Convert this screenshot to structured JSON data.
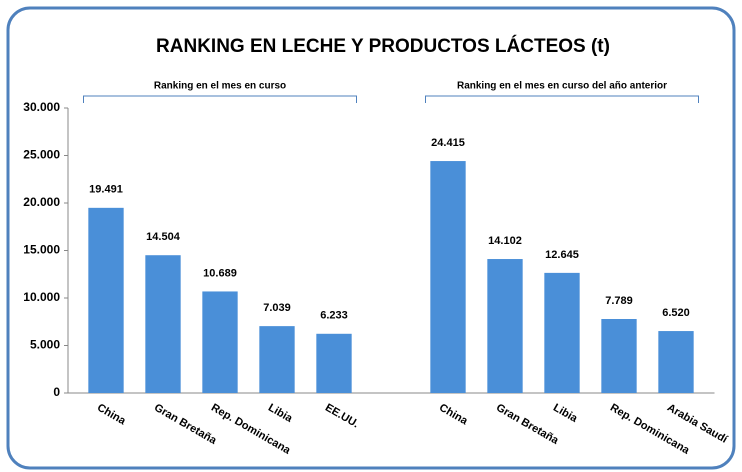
{
  "chart_data": {
    "type": "bar",
    "title": "RANKING EN LECHE Y PRODUCTOS LÁCTEOS (t)",
    "annotations": [
      "Ranking en el mes en curso",
      "Ranking en el mes en curso del año anterior"
    ],
    "categories": [
      "China",
      "Gran Bretaña",
      "Rep. Dominicana",
      "Libia",
      "EE.UU.",
      null,
      "China",
      "Gran Bretaña",
      "Libia",
      "Rep. Dominicana",
      "Arabia Saudí"
    ],
    "values": [
      19491,
      14504,
      10689,
      7039,
      6233,
      null,
      24415,
      14102,
      12645,
      7789,
      6520
    ],
    "value_labels": [
      "19.491",
      "14.504",
      "10.689",
      "7.039",
      "6.233",
      null,
      "24.415",
      "14.102",
      "12.645",
      "7.789",
      "6.520"
    ],
    "color": "#4a8fd8",
    "ylim": [
      0,
      30000
    ],
    "yticks": [
      0,
      {
        "value": 5000,
        "label": "5.000"
      },
      {
        "value": 10000,
        "label": "10.000"
      },
      {
        "value": 15000,
        "label": "15.000"
      },
      {
        "value": 20000,
        "label": "20.000"
      },
      {
        "value": 25000,
        "label": "25.000"
      },
      {
        "value": 30000,
        "label": "30.000"
      }
    ],
    "grid": false
  }
}
